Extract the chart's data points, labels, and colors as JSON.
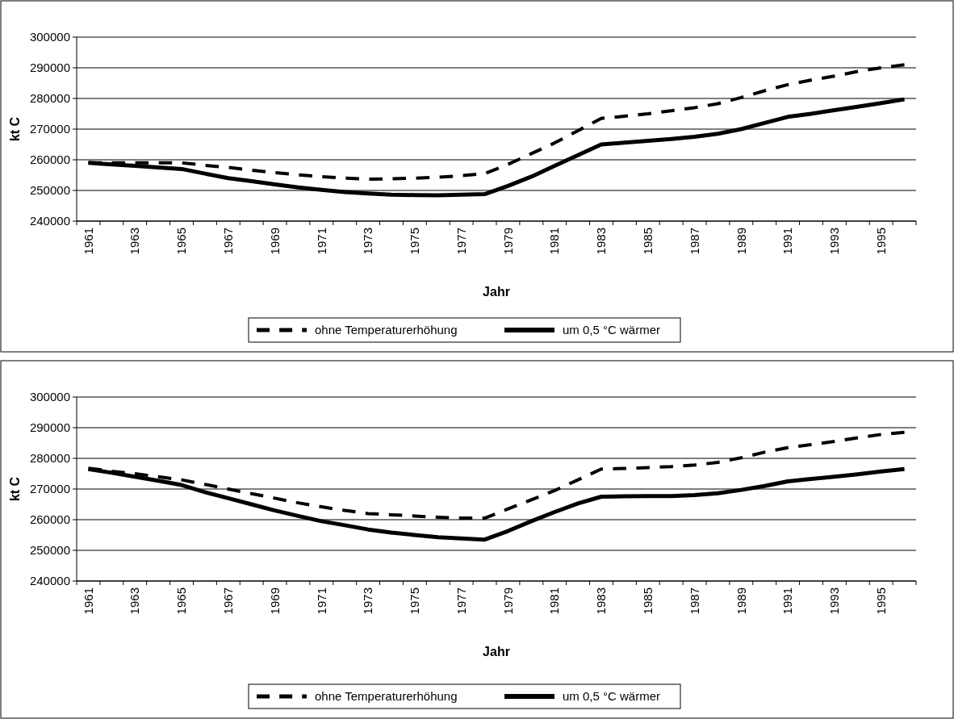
{
  "chart_data": [
    {
      "type": "line",
      "xlabel": "Jahr",
      "ylabel": "kt C",
      "categories": [
        "1961",
        null,
        "1963",
        null,
        "1965",
        null,
        "1967",
        null,
        "1969",
        null,
        "1971",
        null,
        "1973",
        null,
        "1975",
        null,
        "1977",
        null,
        "1979",
        null,
        "1981",
        null,
        "1983",
        null,
        "1985",
        null,
        "1987",
        null,
        "1989",
        null,
        "1991",
        null,
        "1993",
        null,
        "1995",
        null
      ],
      "ylim": [
        240000,
        300000
      ],
      "yticks": [
        240000,
        250000,
        260000,
        270000,
        280000,
        290000,
        300000
      ],
      "grid": "y",
      "legend": "bottom",
      "series": [
        {
          "name": "ohne Temperaturerhöhung",
          "color": "#000000",
          "line_style": "dashed",
          "values": [
            259000,
            259000,
            259000,
            259000,
            259000,
            258200,
            257500,
            256600,
            255800,
            255100,
            254500,
            254000,
            253700,
            253800,
            254000,
            254300,
            254800,
            255500,
            258500,
            262000,
            265500,
            269500,
            273500,
            274200,
            275000,
            276000,
            277000,
            278300,
            280300,
            282500,
            284500,
            286000,
            287300,
            288800,
            290000,
            291000
          ]
        },
        {
          "name": "um 0,5 °C wärmer",
          "color": "#000000",
          "line_style": "solid",
          "values": [
            259000,
            258500,
            258000,
            257500,
            257000,
            255500,
            254000,
            253000,
            252000,
            251000,
            250200,
            249500,
            249000,
            248600,
            248500,
            248400,
            248600,
            248800,
            251500,
            254500,
            258000,
            261500,
            265000,
            265600,
            266200,
            266800,
            267500,
            268500,
            270000,
            272000,
            274000,
            275000,
            276200,
            277300,
            278500,
            279700
          ]
        }
      ]
    },
    {
      "type": "line",
      "xlabel": "Jahr",
      "ylabel": "kt C",
      "categories": [
        "1961",
        null,
        "1963",
        null,
        "1965",
        null,
        "1967",
        null,
        "1969",
        null,
        "1971",
        null,
        "1973",
        null,
        "1975",
        null,
        "1977",
        null,
        "1979",
        null,
        "1981",
        null,
        "1983",
        null,
        "1985",
        null,
        "1987",
        null,
        "1989",
        null,
        "1991",
        null,
        "1993",
        null,
        "1995",
        null
      ],
      "ylim": [
        240000,
        300000
      ],
      "yticks": [
        240000,
        250000,
        260000,
        270000,
        280000,
        290000,
        300000
      ],
      "grid": "y",
      "legend": "bottom",
      "series": [
        {
          "name": "ohne Temperaturerhöhung",
          "color": "#000000",
          "line_style": "dashed",
          "values": [
            276800,
            275800,
            275000,
            274000,
            273000,
            271500,
            270000,
            268500,
            267000,
            265500,
            264200,
            263000,
            262000,
            261600,
            261200,
            260800,
            260500,
            260500,
            263500,
            266500,
            269500,
            273000,
            276500,
            276700,
            277000,
            277300,
            277800,
            278700,
            280200,
            282000,
            283500,
            284500,
            285500,
            286700,
            287800,
            288500
          ]
        },
        {
          "name": "um 0,5 °C wärmer",
          "color": "#000000",
          "line_style": "solid",
          "values": [
            276500,
            275300,
            274000,
            272700,
            271300,
            269000,
            267000,
            265000,
            263000,
            261200,
            259500,
            258200,
            256800,
            255800,
            255000,
            254300,
            253900,
            253500,
            256300,
            259500,
            262500,
            265300,
            267500,
            267600,
            267700,
            267700,
            268000,
            268600,
            269700,
            271000,
            272500,
            273300,
            274000,
            274800,
            275700,
            276500
          ]
        }
      ]
    }
  ]
}
